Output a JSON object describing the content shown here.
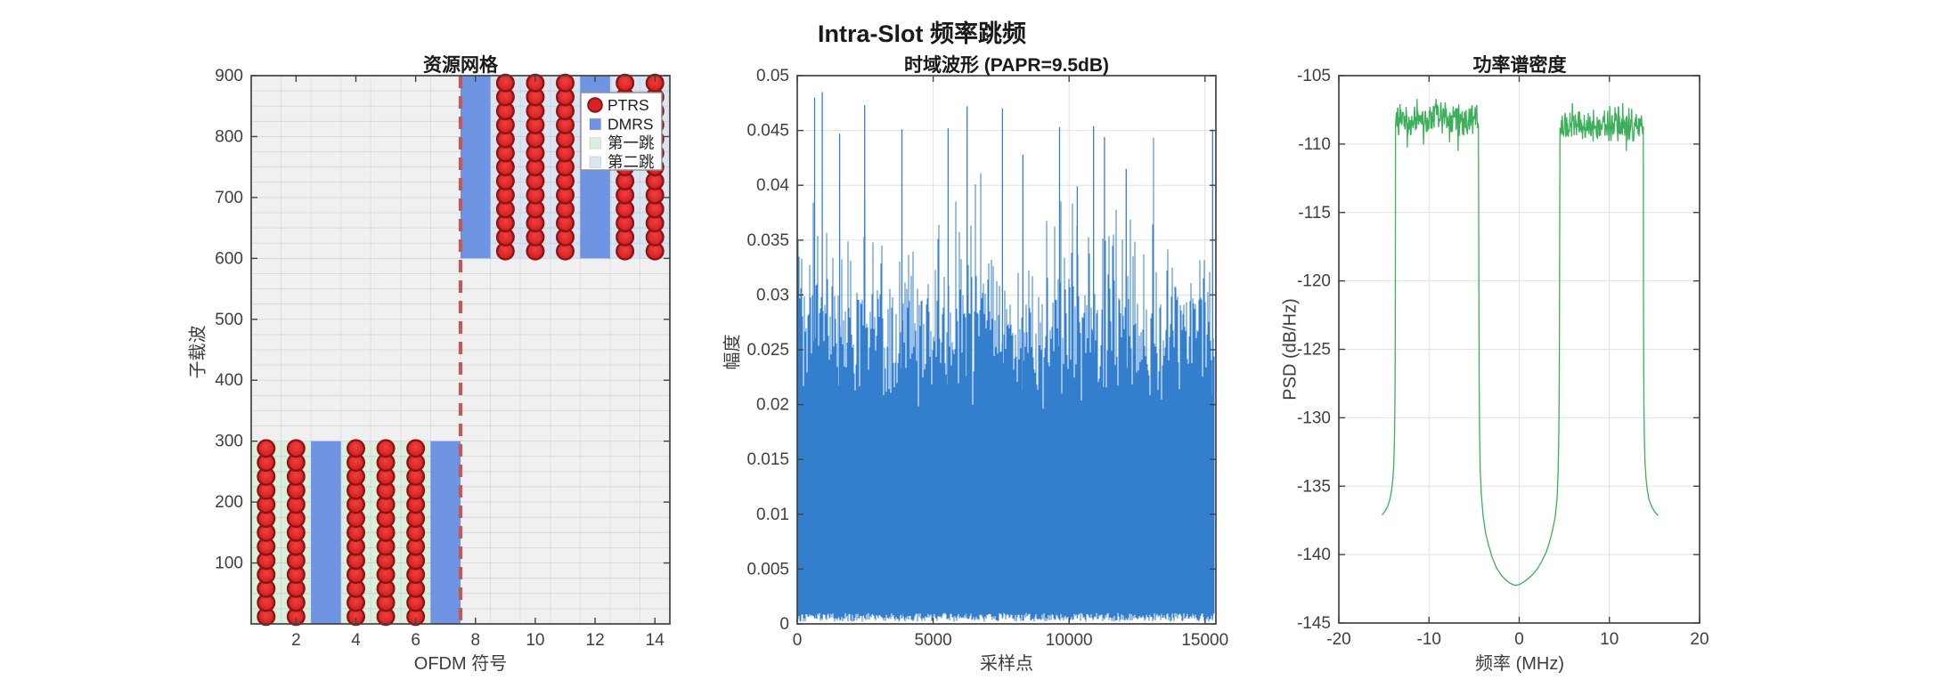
{
  "figure": {
    "main_title": "Intra-Slot 频率跳频",
    "background": "#ffffff",
    "axis_color": "#424242",
    "tick_label_color": "#3f3f3f"
  },
  "chart_data": [
    {
      "id": "resource_grid",
      "type": "scatter",
      "title": "资源网格",
      "xlabel": "OFDM 符号",
      "ylabel": "子载波",
      "xlim": [
        0.5,
        14.5
      ],
      "ylim": [
        0,
        900
      ],
      "xticks": [
        2,
        4,
        6,
        8,
        10,
        12,
        14
      ],
      "yticks": [
        100,
        200,
        300,
        400,
        500,
        600,
        700,
        800,
        900
      ],
      "background": "#f0f0f1",
      "grid": {
        "y_step": 25,
        "color": "rgba(130,130,130,0.20)",
        "vcolor": "rgba(130,130,130,0.14)"
      },
      "hops": [
        {
          "label": "第一跳",
          "symbols": [
            1,
            7
          ],
          "subcarriers": [
            0,
            300
          ],
          "color": "#dceedd"
        },
        {
          "label": "第二跳",
          "symbols": [
            8,
            14
          ],
          "subcarriers": [
            600,
            900
          ],
          "color": "#dbe5f1"
        }
      ],
      "dmrs": {
        "label": "DMRS",
        "color": "#6f94e4",
        "hop1_symbols": [
          3,
          7
        ],
        "hop2_symbols": [
          8,
          12
        ]
      },
      "ptrs": {
        "label": "PTRS",
        "fill": "#d92222",
        "highlight": "#ef4040",
        "edge": "#8e1414",
        "hop1_symbols": [
          1,
          2,
          4,
          5,
          6
        ],
        "hop2_symbols": [
          9,
          10,
          11,
          13,
          14
        ],
        "first_subcarrier": 12,
        "step": 23,
        "count": 13,
        "hop2_offset": 600
      },
      "hop_boundary": {
        "x": 7.5,
        "color": "#c05a56"
      },
      "legend": {
        "items": [
          {
            "label": "PTRS",
            "marker": "circle",
            "color": "#d92222",
            "edge": "#8e1414"
          },
          {
            "label": "DMRS",
            "marker": "square",
            "color": "#6f94e4"
          },
          {
            "label": "第一跳",
            "marker": "square",
            "color": "#dceedd"
          },
          {
            "label": "第二跳",
            "marker": "square",
            "color": "#dbe5f1"
          }
        ]
      }
    },
    {
      "id": "waveform",
      "type": "line",
      "title": "时域波形 (PAPR=9.5dB)",
      "papr_db": 9.5,
      "xlabel": "采样点",
      "ylabel": "幅度",
      "xlim": [
        0,
        15400
      ],
      "ylim": [
        0,
        0.05
      ],
      "xticks": [
        0,
        5000,
        10000,
        15000
      ],
      "yticks": [
        0,
        0.005,
        0.01,
        0.015,
        0.02,
        0.025,
        0.03,
        0.035,
        0.04,
        0.045,
        0.05
      ],
      "n_samples": 15360,
      "samples_per_pixel": 33,
      "sigma": 0.0098,
      "peak_amplitude": 0.0485,
      "color": "#337fcd",
      "grid_color": "#e1e1e1",
      "seed": 20240521,
      "tall_spikes": [
        [
          640,
          0.048
        ],
        [
          920,
          0.0485
        ],
        [
          1560,
          0.0447
        ],
        [
          2480,
          0.0473
        ],
        [
          3850,
          0.0451
        ],
        [
          5550,
          0.0452
        ],
        [
          6250,
          0.0472
        ],
        [
          7550,
          0.047
        ],
        [
          8300,
          0.0428
        ],
        [
          9650,
          0.0453
        ],
        [
          10300,
          0.0399
        ],
        [
          10900,
          0.0454
        ],
        [
          11300,
          0.0444
        ],
        [
          12100,
          0.0415
        ],
        [
          15280,
          0.0451
        ]
      ]
    },
    {
      "id": "psd",
      "type": "line",
      "title": "功率谱密度",
      "xlabel": "频率 (MHz)",
      "ylabel": "PSD (dB/Hz)",
      "xlim": [
        -20,
        20
      ],
      "ylim": [
        -145,
        -105
      ],
      "xticks": [
        -20,
        -10,
        0,
        10,
        20
      ],
      "yticks": [
        -145,
        -140,
        -135,
        -130,
        -125,
        -120,
        -115,
        -110,
        -105
      ],
      "color": "#3caf5a",
      "grid_color": "#e1e1e1",
      "seed": 777,
      "bands": [
        {
          "x": [
            -13.71,
            -4.52
          ],
          "level": -108.2,
          "noise": 0.8
        },
        {
          "x": [
            4.55,
            13.75
          ],
          "level": -108.5,
          "noise": 0.8
        }
      ],
      "left_foot": [
        [
          -15.2,
          -137.1
        ],
        [
          -14.9,
          -136.85
        ],
        [
          -14.6,
          -136.5
        ],
        [
          -14.35,
          -136.0
        ],
        [
          -14.15,
          -135.3
        ],
        [
          -14.0,
          -134.4
        ],
        [
          -13.9,
          -133.2
        ],
        [
          -13.83,
          -131.5
        ],
        [
          -13.78,
          -129.0
        ],
        [
          -13.75,
          -125.0
        ],
        [
          -13.73,
          -119.0
        ],
        [
          -13.72,
          -112.0
        ],
        [
          -13.71,
          -108.6
        ]
      ],
      "notch": [
        [
          -4.52,
          -108.6
        ],
        [
          -4.5,
          -113.0
        ],
        [
          -4.47,
          -120.0
        ],
        [
          -4.44,
          -127.0
        ],
        [
          -4.4,
          -131.0
        ],
        [
          -4.33,
          -133.8
        ],
        [
          -4.2,
          -135.6
        ],
        [
          -4.0,
          -137.2
        ],
        [
          -3.7,
          -138.5
        ],
        [
          -3.4,
          -139.3
        ],
        [
          -3.0,
          -140.2
        ],
        [
          -2.5,
          -141.0
        ],
        [
          -2.0,
          -141.5
        ],
        [
          -1.5,
          -141.85
        ],
        [
          -1.0,
          -142.1
        ],
        [
          -0.5,
          -142.25
        ],
        [
          0.0,
          -142.2
        ],
        [
          0.5,
          -142.0
        ],
        [
          1.0,
          -141.75
        ],
        [
          1.5,
          -141.45
        ],
        [
          2.0,
          -141.05
        ],
        [
          2.5,
          -140.5
        ],
        [
          3.0,
          -139.8
        ],
        [
          3.4,
          -139.0
        ],
        [
          3.7,
          -138.2
        ],
        [
          4.0,
          -137.2
        ],
        [
          4.2,
          -135.9
        ],
        [
          4.33,
          -133.8
        ],
        [
          4.4,
          -131.0
        ],
        [
          4.44,
          -127.0
        ],
        [
          4.47,
          -120.0
        ],
        [
          4.5,
          -113.0
        ],
        [
          4.52,
          -108.8
        ]
      ],
      "right_foot": [
        [
          13.76,
          -108.7
        ],
        [
          13.77,
          -112.0
        ],
        [
          13.78,
          -119.0
        ],
        [
          13.8,
          -125.0
        ],
        [
          13.83,
          -129.0
        ],
        [
          13.88,
          -131.5
        ],
        [
          13.95,
          -133.2
        ],
        [
          14.05,
          -134.4
        ],
        [
          14.2,
          -135.3
        ],
        [
          14.4,
          -136.0
        ],
        [
          14.7,
          -136.5
        ],
        [
          15.05,
          -136.9
        ],
        [
          15.4,
          -137.15
        ]
      ]
    }
  ]
}
